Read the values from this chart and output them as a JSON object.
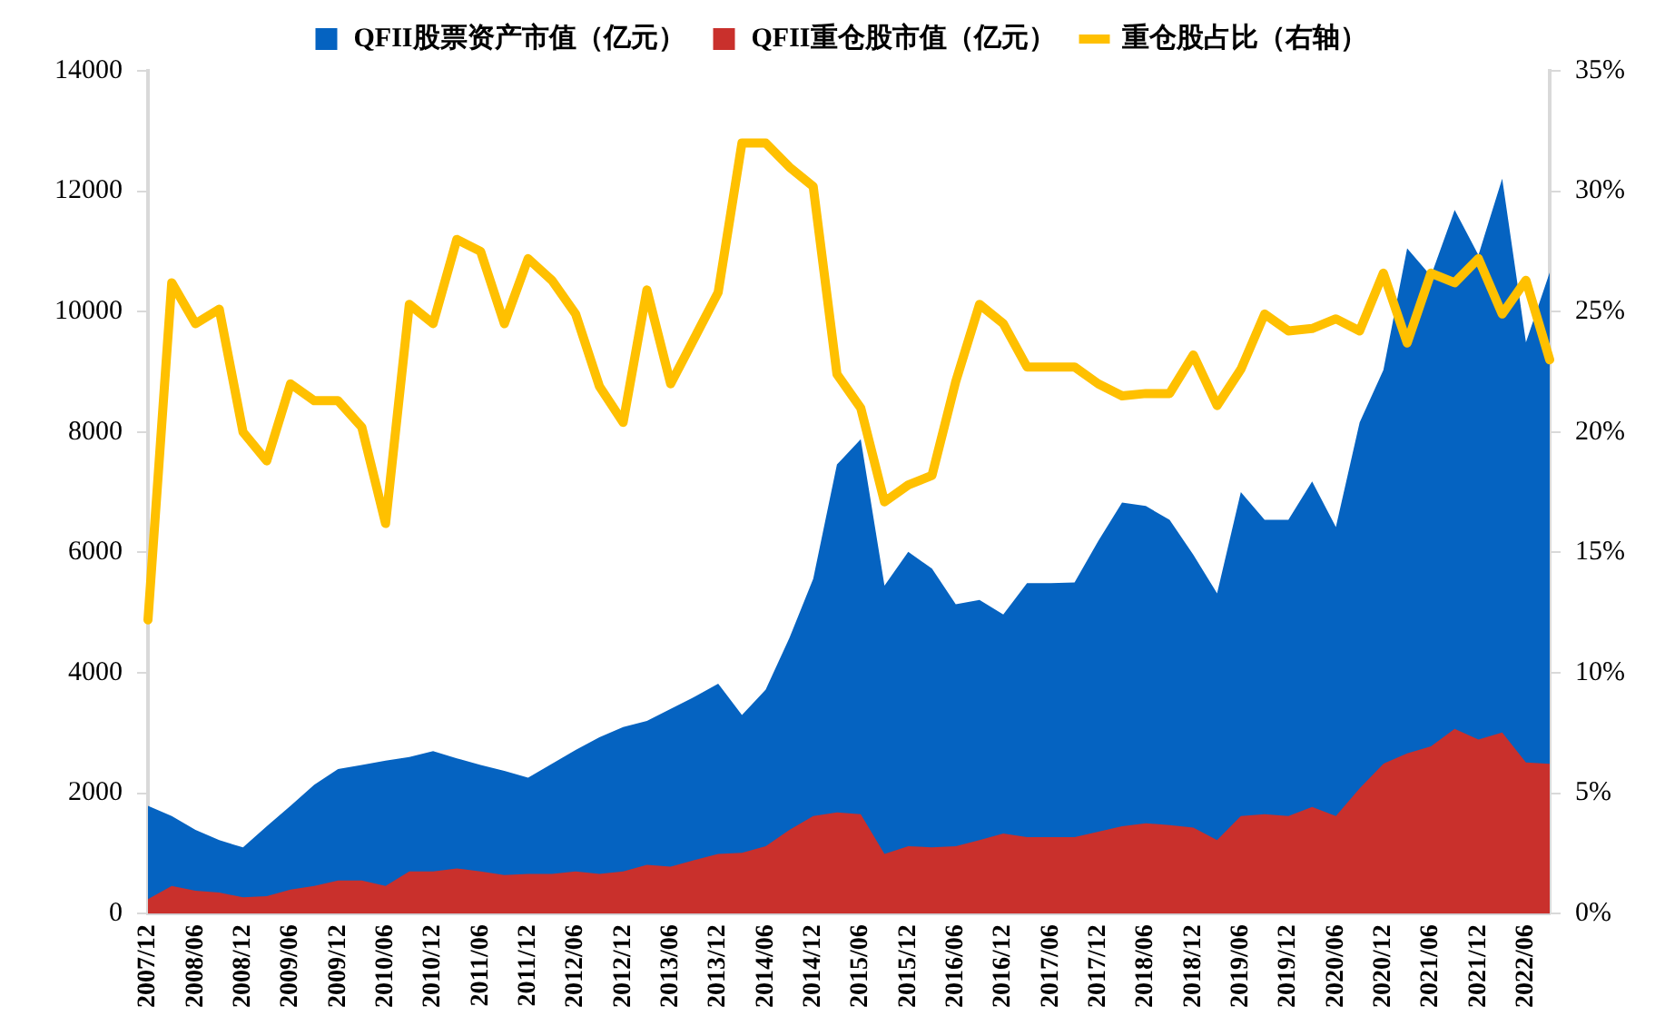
{
  "chart_data": {
    "type": "area",
    "categories": [
      "2007/12",
      null,
      "2008/06",
      null,
      "2008/12",
      null,
      "2009/06",
      null,
      "2009/12",
      null,
      "2010/06",
      null,
      "2010/12",
      null,
      "2011/06",
      null,
      "2011/12",
      null,
      "2012/06",
      null,
      "2012/12",
      null,
      "2013/06",
      null,
      "2013/12",
      null,
      "2014/06",
      null,
      "2014/12",
      null,
      "2015/06",
      null,
      "2015/12",
      null,
      "2016/06",
      null,
      "2016/12",
      null,
      "2017/06",
      null,
      "2017/12",
      null,
      "2018/06",
      null,
      "2018/12",
      null,
      "2019/06",
      null,
      "2019/12",
      null,
      "2020/06",
      null,
      "2020/12",
      null,
      "2021/06",
      null,
      "2021/12",
      null,
      "2022/06",
      null
    ],
    "series": [
      {
        "name": "QFII股票资产市值（亿元）",
        "color": "#0563c1",
        "values": [
          1790,
          1620,
          1390,
          1220,
          1100,
          1450,
          1790,
          2140,
          2400,
          2470,
          2540,
          2600,
          2700,
          2580,
          2470,
          2370,
          2260,
          2490,
          2720,
          2930,
          3100,
          3200,
          3400,
          3600,
          3820,
          3300,
          3720,
          4580,
          5560,
          7460,
          7880,
          5450,
          6010,
          5730,
          5140,
          5210,
          4970,
          5490,
          5490,
          5500,
          6190,
          6830,
          6770,
          6540,
          5960,
          5320,
          7000,
          6540,
          6540,
          7180,
          6420,
          8160,
          9030,
          11050,
          10590,
          11690,
          10940,
          12210,
          9490,
          10650
        ]
      },
      {
        "name": "QFII重仓股市值（亿元）",
        "color": "#c9302c",
        "values": [
          240,
          460,
          380,
          350,
          270,
          290,
          400,
          460,
          550,
          550,
          460,
          700,
          700,
          750,
          700,
          640,
          660,
          660,
          700,
          660,
          700,
          810,
          780,
          890,
          990,
          1010,
          1120,
          1390,
          1620,
          1680,
          1650,
          990,
          1120,
          1100,
          1120,
          1220,
          1330,
          1270,
          1270,
          1270,
          1360,
          1450,
          1500,
          1470,
          1430,
          1220,
          1620,
          1650,
          1620,
          1770,
          1620,
          2080,
          2490,
          2660,
          2780,
          3070,
          2890,
          3010,
          2510,
          2490
        ]
      },
      {
        "name": "重仓股占比（右轴）",
        "type": "line",
        "axis": "y2",
        "color": "#ffc000",
        "values": [
          12.2,
          26.2,
          24.5,
          25.1,
          20.0,
          18.8,
          22.0,
          21.3,
          21.3,
          20.2,
          16.2,
          25.3,
          24.5,
          28.0,
          27.5,
          24.5,
          27.2,
          26.3,
          24.9,
          21.9,
          20.4,
          25.9,
          22.0,
          23.9,
          25.8,
          32.0,
          32.0,
          31.0,
          30.2,
          22.4,
          21.0,
          17.1,
          17.8,
          18.2,
          22.1,
          25.3,
          24.5,
          22.7,
          22.7,
          22.7,
          22.0,
          21.5,
          21.6,
          21.6,
          23.2,
          21.1,
          22.6,
          24.9,
          24.2,
          24.3,
          24.7,
          24.2,
          26.6,
          23.7,
          26.6,
          26.2,
          27.2,
          24.9,
          26.3,
          23.0
        ]
      }
    ],
    "ylim": [
      0,
      14000
    ],
    "yticks": [
      0,
      2000,
      4000,
      6000,
      8000,
      10000,
      12000,
      14000
    ],
    "y2lim": [
      0,
      35
    ],
    "y2ticks": [
      {
        "value": 0,
        "label": "0%"
      },
      {
        "value": 5,
        "label": "5%"
      },
      {
        "value": 10,
        "label": "10%"
      },
      {
        "value": 15,
        "label": "15%"
      },
      {
        "value": 20,
        "label": "20%"
      },
      {
        "value": 25,
        "label": "25%"
      },
      {
        "value": 30,
        "label": "30%"
      },
      {
        "value": 35,
        "label": "35%"
      }
    ],
    "grid": false,
    "legend": "top",
    "marker": "none",
    "line_style": "solid"
  }
}
